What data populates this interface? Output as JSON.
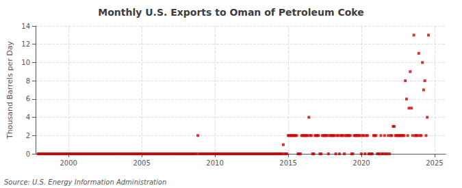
{
  "chart_data": {
    "type": "scatter",
    "title": "Monthly U.S. Exports to Oman of Petroleum Coke",
    "y_label": "Thousand Barrels per Day",
    "annotations": [
      "Source: U.S. Energy Information Administration"
    ],
    "color": "#cc0000",
    "marker": "square",
    "grid": true,
    "xlim": [
      1997.75,
      2025.75
    ],
    "xticks": [
      2000,
      2005,
      2010,
      2015,
      2020,
      2025
    ],
    "ylim": [
      0,
      14
    ],
    "yticks": [
      0,
      2,
      4,
      6,
      8,
      10,
      12,
      14
    ],
    "x": [
      1997.917,
      1998.0,
      1998.083,
      1998.167,
      1998.25,
      1998.333,
      1998.417,
      1998.5,
      1998.583,
      1998.667,
      1998.75,
      1998.833,
      1998.917,
      1999.0,
      1999.083,
      1999.167,
      1999.25,
      1999.333,
      1999.417,
      1999.5,
      1999.583,
      1999.667,
      1999.75,
      1999.833,
      1999.917,
      2000.0,
      2000.083,
      2000.167,
      2000.25,
      2000.333,
      2000.417,
      2000.5,
      2000.583,
      2000.667,
      2000.75,
      2000.833,
      2000.917,
      2001.0,
      2001.083,
      2001.167,
      2001.25,
      2001.333,
      2001.417,
      2001.5,
      2001.583,
      2001.667,
      2001.75,
      2001.833,
      2001.917,
      2002.0,
      2002.083,
      2002.167,
      2002.25,
      2002.333,
      2002.417,
      2002.5,
      2002.583,
      2002.667,
      2002.75,
      2002.833,
      2002.917,
      2003.0,
      2003.083,
      2003.167,
      2003.25,
      2003.333,
      2003.417,
      2003.5,
      2003.583,
      2003.667,
      2003.75,
      2003.833,
      2003.917,
      2004.0,
      2004.083,
      2004.167,
      2004.25,
      2004.333,
      2004.417,
      2004.5,
      2004.583,
      2004.667,
      2004.75,
      2004.833,
      2004.917,
      2005.0,
      2005.083,
      2005.167,
      2005.25,
      2005.333,
      2005.417,
      2005.5,
      2005.583,
      2005.667,
      2005.75,
      2005.833,
      2005.917,
      2006.0,
      2006.083,
      2006.167,
      2006.25,
      2006.333,
      2006.417,
      2006.5,
      2006.583,
      2006.667,
      2006.75,
      2006.833,
      2006.917,
      2007.0,
      2007.083,
      2007.167,
      2007.25,
      2007.333,
      2007.417,
      2007.5,
      2007.583,
      2007.667,
      2007.75,
      2007.833,
      2007.917,
      2008.0,
      2008.083,
      2008.167,
      2008.25,
      2008.333,
      2008.417,
      2008.5,
      2008.583,
      2008.667,
      2008.75,
      2008.833,
      2008.917,
      2009.0,
      2009.083,
      2009.167,
      2009.25,
      2009.333,
      2009.417,
      2009.5,
      2009.583,
      2009.667,
      2009.75,
      2009.833,
      2009.917,
      2010.0,
      2010.083,
      2010.167,
      2010.25,
      2010.333,
      2010.417,
      2010.5,
      2010.583,
      2010.667,
      2010.75,
      2010.833,
      2010.917,
      2011.0,
      2011.083,
      2011.167,
      2011.25,
      2011.333,
      2011.417,
      2011.5,
      2011.583,
      2011.667,
      2011.75,
      2011.833,
      2011.917,
      2012.0,
      2012.083,
      2012.167,
      2012.25,
      2012.333,
      2012.417,
      2012.5,
      2012.583,
      2012.667,
      2012.75,
      2012.833,
      2012.917,
      2013.0,
      2013.083,
      2013.167,
      2013.25,
      2013.333,
      2013.417,
      2013.5,
      2013.583,
      2013.667,
      2013.75,
      2013.833,
      2013.917,
      2014.0,
      2014.083,
      2014.167,
      2014.25,
      2014.333,
      2014.417,
      2014.5,
      2014.583,
      2014.667,
      2014.75,
      2014.833,
      2014.917,
      2015.0,
      2015.083,
      2015.167,
      2015.25,
      2015.333,
      2015.417,
      2015.5,
      2015.583,
      2015.667,
      2015.75,
      2015.833,
      2015.917,
      2016.0,
      2016.083,
      2016.167,
      2016.25,
      2016.333,
      2016.417,
      2016.5,
      2016.583,
      2016.667,
      2016.75,
      2016.833,
      2016.917,
      2017.0,
      2017.083,
      2017.167,
      2017.25,
      2017.333,
      2017.417,
      2017.5,
      2017.583,
      2017.667,
      2017.75,
      2017.833,
      2017.917,
      2018.0,
      2018.083,
      2018.167,
      2018.25,
      2018.333,
      2018.417,
      2018.5,
      2018.583,
      2018.667,
      2018.75,
      2018.833,
      2018.917,
      2019.0,
      2019.083,
      2019.167,
      2019.25,
      2019.333,
      2019.417,
      2019.5,
      2019.583,
      2019.667,
      2019.75,
      2019.833,
      2019.917,
      2020.0,
      2020.083,
      2020.167,
      2020.25,
      2020.333,
      2020.417,
      2020.5,
      2020.583,
      2020.667,
      2020.75,
      2020.833,
      2020.917,
      2021.0,
      2021.083,
      2021.167,
      2021.25,
      2021.333,
      2021.417,
      2021.5,
      2021.583,
      2021.667,
      2021.75,
      2021.833,
      2021.917,
      2022.0,
      2022.083,
      2022.167,
      2022.25,
      2022.333,
      2022.417,
      2022.5,
      2022.583,
      2022.667,
      2022.75,
      2022.833,
      2022.917,
      2023.0,
      2023.083,
      2023.167,
      2023.25,
      2023.333,
      2023.417,
      2023.5,
      2023.583,
      2023.667,
      2023.75,
      2023.833,
      2023.917,
      2024.0,
      2024.083,
      2024.167,
      2024.25,
      2024.333,
      2024.417,
      2024.5,
      2024.583
    ],
    "values": [
      0,
      0,
      0,
      0,
      0,
      0,
      0,
      0,
      0,
      0,
      0,
      0,
      0,
      0,
      0,
      0,
      0,
      0,
      0,
      0,
      0,
      0,
      0,
      0,
      0,
      0,
      0,
      0,
      0,
      0,
      0,
      0,
      0,
      0,
      0,
      0,
      0,
      0,
      0,
      0,
      0,
      0,
      0,
      0,
      0,
      0,
      0,
      0,
      0,
      0,
      0,
      0,
      0,
      0,
      0,
      0,
      0,
      0,
      0,
      0,
      0,
      0,
      0,
      0,
      0,
      0,
      0,
      0,
      0,
      0,
      0,
      0,
      0,
      0,
      0,
      0,
      0,
      0,
      0,
      0,
      0,
      0,
      0,
      0,
      0,
      0,
      0,
      0,
      0,
      0,
      0,
      0,
      0,
      0,
      0,
      0,
      0,
      0,
      0,
      0,
      0,
      0,
      0,
      0,
      0,
      0,
      0,
      0,
      0,
      0,
      0,
      0,
      0,
      0,
      0,
      0,
      0,
      0,
      0,
      0,
      0,
      0,
      0,
      0,
      0,
      0,
      0,
      0,
      0,
      0,
      0,
      2,
      0,
      0,
      0,
      0,
      0,
      0,
      0,
      0,
      0,
      0,
      0,
      0,
      0,
      0,
      0,
      0,
      0,
      0,
      0,
      0,
      0,
      0,
      0,
      0,
      0,
      0,
      0,
      0,
      0,
      0,
      0,
      0,
      0,
      0,
      0,
      0,
      0,
      0,
      0,
      0,
      0,
      0,
      0,
      0,
      0,
      0,
      0,
      0,
      0,
      0,
      0,
      0,
      0,
      0,
      0,
      0,
      0,
      0,
      0,
      0,
      0,
      0,
      0,
      0,
      0,
      0,
      0,
      0,
      0,
      1,
      0,
      0,
      0,
      2,
      2,
      2,
      2,
      2,
      2,
      2,
      2,
      0,
      0,
      0,
      2,
      2,
      2,
      2,
      2,
      2,
      4,
      2,
      2,
      0,
      0,
      2,
      2,
      2,
      2,
      0,
      0,
      2,
      2,
      2,
      2,
      2,
      0,
      2,
      2,
      2,
      2,
      2,
      0,
      2,
      2,
      0,
      2,
      2,
      2,
      0,
      2,
      2,
      2,
      2,
      2,
      0,
      0,
      2,
      2,
      2,
      2,
      2,
      2,
      0,
      2,
      2,
      0,
      2,
      2,
      0,
      0,
      0,
      0,
      2,
      2,
      2,
      0,
      0,
      0,
      2,
      0,
      0,
      2,
      0,
      0,
      2,
      0,
      2,
      2,
      3,
      3,
      2,
      2,
      2,
      2,
      2,
      2,
      2,
      2,
      8,
      6,
      2,
      5,
      9,
      5,
      2,
      13,
      2,
      2,
      2,
      11,
      2,
      2,
      10,
      7,
      8,
      2,
      4,
      13
    ]
  }
}
